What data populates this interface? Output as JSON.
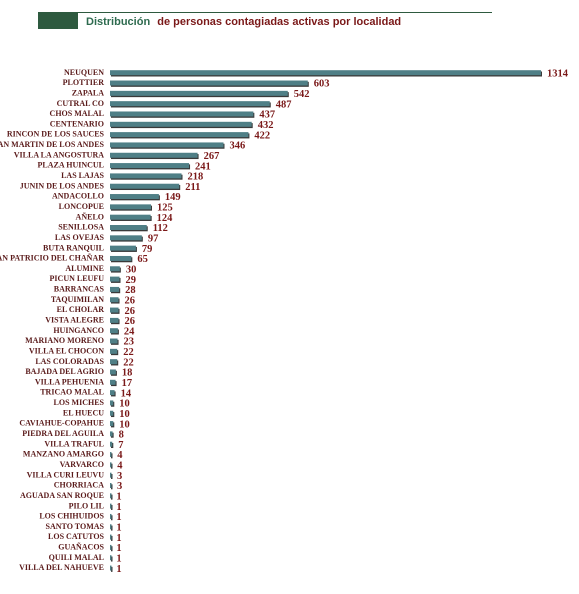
{
  "chart_data": {
    "type": "bar",
    "orientation": "horizontal",
    "title": [
      "Distribución",
      "de personas contagiadas activas por localidad"
    ],
    "title_colors": [
      "#2e6b4f",
      "#7a1818"
    ],
    "color": "#4f7f86",
    "categories": [
      "NEUQUEN",
      "PLOTTIER",
      "ZAPALA",
      "CUTRAL CO",
      "CHOS MALAL",
      "CENTENARIO",
      "RINCON DE LOS SAUCES",
      "SAN MARTIN DE LOS ANDES",
      "VILLA LA ANGOSTURA",
      "PLAZA HUINCUL",
      "LAS LAJAS",
      "JUNIN DE LOS ANDES",
      "ANDACOLLO",
      "LONCOPUE",
      "AÑELO",
      "SENILLOSA",
      "LAS OVEJAS",
      "BUTA RANQUIL",
      "SAN PATRICIO DEL CHAÑAR",
      "ALUMINE",
      "PICUN LEUFU",
      "BARRANCAS",
      "TAQUIMILAN",
      "EL CHOLAR",
      "VISTA ALEGRE",
      "HUINGANCO",
      "MARIANO MORENO",
      "VILLA EL CHOCON",
      "LAS COLORADAS",
      "BAJADA DEL AGRIO",
      "VILLA PEHUENIA",
      "TRICAO MALAL",
      "LOS MICHES",
      "EL HUECU",
      "CAVIAHUE-COPAHUE",
      "PIEDRA DEL AGUILA",
      "VILLA TRAFUL",
      "MANZANO AMARGO",
      "VARVARCO",
      "VILLA CURI LEUVU",
      "CHORRIACA",
      "AGUADA SAN ROQUE",
      "PILO LIL",
      "LOS CHIHUIDOS",
      "SANTO TOMAS",
      "LOS CATUTOS",
      "GUAÑACOS",
      "QUILI MALAL",
      "VILLA DEL NAHUEVE"
    ],
    "values": [
      1314,
      603,
      542,
      487,
      437,
      432,
      422,
      346,
      267,
      241,
      218,
      211,
      149,
      125,
      124,
      112,
      97,
      79,
      65,
      30,
      29,
      28,
      26,
      26,
      26,
      24,
      23,
      22,
      22,
      18,
      17,
      14,
      10,
      10,
      10,
      8,
      7,
      4,
      4,
      3,
      3,
      1,
      1,
      1,
      1,
      1,
      1,
      1,
      1
    ]
  }
}
